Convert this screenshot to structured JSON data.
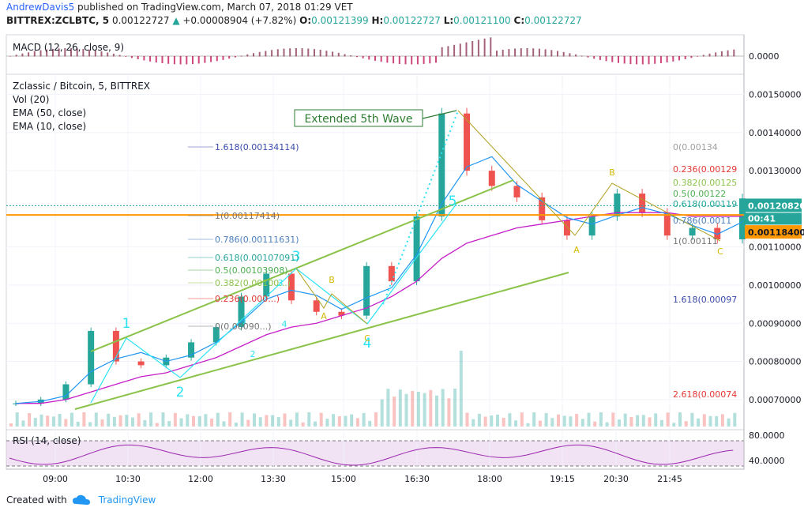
{
  "header": {
    "author": "AndrewDavis5",
    "published": "published on TradingView.com, March 07, 2018 01:29 VET",
    "symbol": "BITTREX:ZCLBTC, 5",
    "last": "0.00122727",
    "change": "+0.00008904 (+7.82%)",
    "o_label": "O:",
    "o": "0.00121399",
    "h_label": "H:",
    "h": "0.00122727",
    "l_label": "L:",
    "l": "0.00121100",
    "c_label": "C:",
    "c": "0.00122727"
  },
  "macd": {
    "label": "MACD (12, 26, close, 9)",
    "value": "0.0000"
  },
  "main": {
    "title": "Zclassic / Bitcoin, 5, BITTREX",
    "indicators": [
      "Vol (20)",
      "EMA (50, close)",
      "EMA (10, close)"
    ],
    "price_ticks": [
      "0.00150000",
      "0.00140000",
      "0.00130000",
      "0.00110000",
      "0.00100000",
      "0.00090000",
      "0.00080000",
      "0.00070000"
    ],
    "price_badge": "0.00120820",
    "timer_badge": "00:41",
    "orange_badge": "0.00118400",
    "annotation": "Extended 5th Wave",
    "fib_left": [
      "1.618(0.00134114)",
      "1(0.00117414)",
      "0.786(0.00111631)",
      "0.618(0.00107091)",
      "0.5(0.00103908)",
      "0.382(0.00100...)",
      "0.236(0.000...)",
      "0(0.00090...)"
    ],
    "fib_right": [
      "0(0.00134",
      "0.236(0.00129",
      "0.382(0.00125",
      "0.5(0.00122",
      "0.618(0.00119",
      "0.786(0.0011",
      "1(0.00111",
      "1.618(0.00097",
      "2.618(0.00074"
    ],
    "wave_labels": [
      "1",
      "2",
      "3",
      "4",
      "5"
    ],
    "sub_wave_labels": [
      "1",
      "2",
      "3",
      "4"
    ],
    "abc_labels": [
      "A",
      "B",
      "C",
      "A",
      "B",
      "C"
    ]
  },
  "rsi": {
    "label": "RSI (14, close)",
    "ticks": [
      "80.0000",
      "40.0000"
    ]
  },
  "time_axis": [
    "09:00",
    "10:30",
    "12:00",
    "13:30",
    "15:00",
    "16:30",
    "18:00",
    "19:15",
    "20:30",
    "21:45"
  ],
  "footer": {
    "created_with": "Created with",
    "brand": "TradingView"
  },
  "colors": {
    "up": "#26a69a",
    "down": "#ef5350",
    "ema50": "#c51ec8",
    "ema10": "#2196f3",
    "trend": "#8bc34a",
    "wave": "#29e3f5",
    "abc": "#ffeb3b",
    "orange": "#ff9800"
  },
  "chart_data": {
    "type": "candlestick",
    "symbol": "ZCL/BTC",
    "timeframe": "5",
    "y_range": [
      0.00065,
      0.00153
    ],
    "x": [
      "09:00",
      "09:30",
      "10:00",
      "10:30",
      "11:00",
      "11:30",
      "12:00",
      "12:30",
      "13:00",
      "13:30",
      "14:00",
      "14:30",
      "15:00",
      "15:30",
      "16:00",
      "16:30",
      "17:00",
      "17:30",
      "18:00",
      "18:30",
      "19:00",
      "19:15",
      "19:45",
      "20:00",
      "20:30",
      "21:00",
      "21:30",
      "21:45",
      "22:15",
      "22:45"
    ],
    "close": [
      0.00069,
      0.0007,
      0.00074,
      0.00088,
      0.0008,
      0.00079,
      0.00081,
      0.00085,
      0.00089,
      0.00097,
      0.00103,
      0.00096,
      0.00093,
      0.00092,
      0.00105,
      0.00101,
      0.00118,
      0.00145,
      0.0013,
      0.00126,
      0.00123,
      0.00117,
      0.00113,
      0.00118,
      0.00124,
      0.00119,
      0.00113,
      0.00115,
      0.00112,
      0.00122727
    ],
    "ema50": [
      0.00069,
      0.00069,
      0.0007,
      0.00072,
      0.00074,
      0.00076,
      0.00077,
      0.00079,
      0.00081,
      0.00084,
      0.00087,
      0.00089,
      0.0009,
      0.00092,
      0.00094,
      0.00097,
      0.00101,
      0.00107,
      0.00111,
      0.00113,
      0.00115,
      0.00116,
      0.00117,
      0.00118,
      0.00119,
      0.00119,
      0.00119,
      0.00118,
      0.00118,
      0.00118
    ]
  }
}
